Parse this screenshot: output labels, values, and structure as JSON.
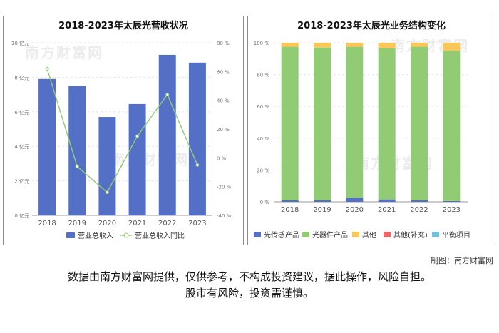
{
  "left_chart": {
    "title": "2018-2023年太辰光营收状况",
    "watermark": "南方财富网",
    "chart_data": {
      "type": "bar+line",
      "categories": [
        "2018",
        "2019",
        "2020",
        "2021",
        "2022",
        "2023"
      ],
      "series": [
        {
          "name": "营业总收入",
          "type": "bar",
          "axis": "left",
          "unit": "亿元",
          "values": [
            7.9,
            7.5,
            5.7,
            6.45,
            9.3,
            8.85
          ]
        },
        {
          "name": "营业总收入同比",
          "type": "line",
          "axis": "right",
          "unit": "%",
          "values": [
            62,
            -6,
            -24,
            15,
            44,
            -5
          ]
        }
      ],
      "y_left": {
        "ticks": [
          "0 亿元",
          "2 亿元",
          "4 亿元",
          "6 亿元",
          "8 亿元",
          "10 亿元"
        ],
        "ylim": [
          0,
          10
        ]
      },
      "y_right": {
        "ticks": [
          "-40 %",
          "-20 %",
          "0 %",
          "20 %",
          "40 %",
          "60 %",
          "80 %"
        ],
        "ylim": [
          -40,
          80
        ]
      },
      "colors": {
        "bar": "#5470c6",
        "line": "#91cc75"
      },
      "legend_position": "bottom"
    }
  },
  "right_chart": {
    "title": "2018-2023年太辰光业务结构变化",
    "watermark": "南方财富网",
    "chart_data": {
      "type": "stacked-bar-percent",
      "categories": [
        "2018",
        "2019",
        "2020",
        "2021",
        "2022",
        "2023"
      ],
      "series": [
        {
          "name": "光传感产品",
          "color": "#5470c6",
          "values": [
            1,
            1,
            2.5,
            1.5,
            1,
            0.5
          ]
        },
        {
          "name": "光器件产品",
          "color": "#91cc75",
          "values": [
            96.5,
            96,
            95,
            95,
            96.5,
            94.5
          ]
        },
        {
          "name": "其他",
          "color": "#fac858",
          "values": [
            2.5,
            3,
            2.5,
            3.5,
            2.5,
            5
          ]
        },
        {
          "name": "其他(补充)",
          "color": "#ee6666",
          "values": [
            0,
            0,
            0,
            0,
            0,
            0
          ]
        },
        {
          "name": "平衡项目",
          "color": "#73c0de",
          "values": [
            0,
            0,
            0,
            0,
            0,
            0
          ]
        }
      ],
      "y_ticks": [
        "0 %",
        "20 %",
        "40 %",
        "60 %",
        "80 %",
        "100 %"
      ],
      "ylim": [
        0,
        100
      ],
      "legend_position": "bottom"
    }
  },
  "footer": {
    "credit": "制图：南方财富网",
    "disclaimer_line1": "数据由南方财富网提供，仅供参考，不构成投资建议，据此操作，风险自担。",
    "disclaimer_line2": "股市有风险，投资需谨慎。"
  }
}
